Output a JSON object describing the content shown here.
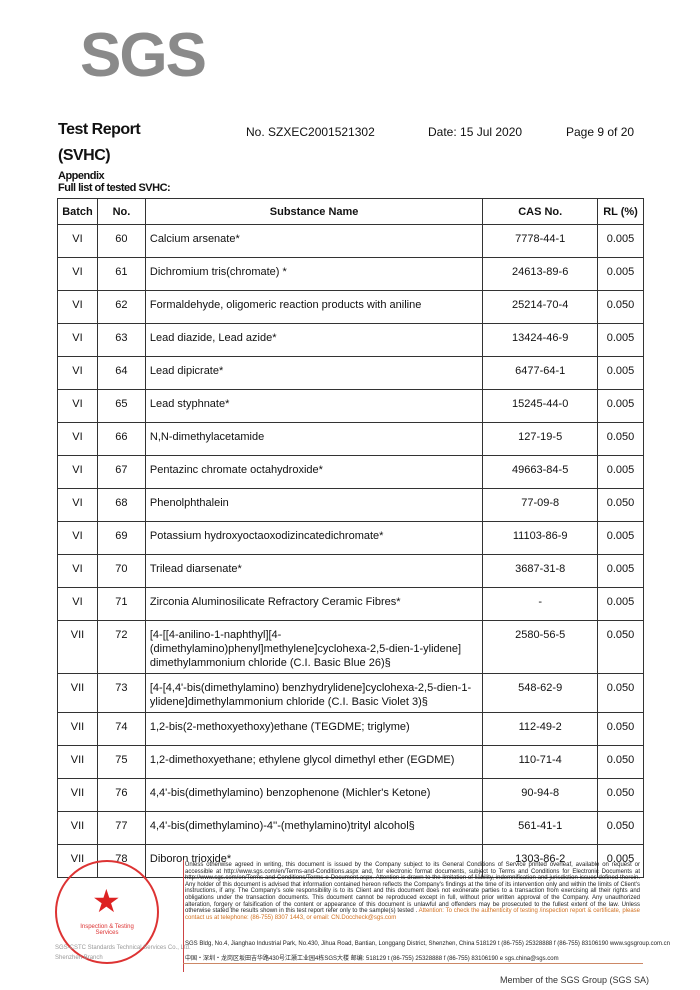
{
  "logo": "SGS",
  "header": {
    "title": "Test Report",
    "report_no": "No. SZXEC2001521302",
    "date": "Date: 15 Jul 2020",
    "page": "Page 9 of 20",
    "subtitle": "(SVHC)"
  },
  "appendix": "Appendix",
  "list_title": "Full list of tested SVHC:",
  "table": {
    "headers": [
      "Batch",
      "No.",
      "Substance Name",
      "CAS No.",
      "RL (%)"
    ],
    "rows": [
      [
        "VI",
        "60",
        "Calcium arsenate*",
        "7778-44-1",
        "0.005"
      ],
      [
        "VI",
        "61",
        "Dichromium tris(chromate) *",
        "24613-89-6",
        "0.005"
      ],
      [
        "VI",
        "62",
        "Formaldehyde, oligomeric reaction products with aniline",
        "25214-70-4",
        "0.050"
      ],
      [
        "VI",
        "63",
        "Lead diazide, Lead azide*",
        "13424-46-9",
        "0.005"
      ],
      [
        "VI",
        "64",
        "Lead dipicrate*",
        "6477-64-1",
        "0.005"
      ],
      [
        "VI",
        "65",
        "Lead styphnate*",
        "15245-44-0",
        "0.005"
      ],
      [
        "VI",
        "66",
        "N,N-dimethylacetamide",
        "127-19-5",
        "0.050"
      ],
      [
        "VI",
        "67",
        "Pentazinc chromate octahydroxide*",
        "49663-84-5",
        "0.005"
      ],
      [
        "VI",
        "68",
        "Phenolphthalein",
        "77-09-8",
        "0.050"
      ],
      [
        "VI",
        "69",
        "Potassium hydroxyoctaoxodizincatedichromate*",
        "11103-86-9",
        "0.005"
      ],
      [
        "VI",
        "70",
        "Trilead diarsenate*",
        "3687-31-8",
        "0.005"
      ],
      [
        "VI",
        "71",
        "Zirconia Aluminosilicate Refractory Ceramic Fibres*",
        "-",
        "0.005"
      ],
      [
        "VII",
        "72",
        "[4-[[4-anilino-1-naphthyl][4-(dimethylamino)phenyl]methylene]cyclohexa-2,5-dien-1-ylidene] dimethylammonium chloride (C.I. Basic Blue 26)§",
        "2580-56-5",
        "0.050"
      ],
      [
        "VII",
        "73",
        "[4-[4,4'-bis(dimethylamino) benzhydrylidene]cyclohexa-2,5-dien-1-ylidene]dimethylammonium chloride (C.I. Basic Violet 3)§",
        "548-62-9",
        "0.050"
      ],
      [
        "VII",
        "74",
        "1,2-bis(2-methoxyethoxy)ethane (TEGDME; triglyme)",
        "112-49-2",
        "0.050"
      ],
      [
        "VII",
        "75",
        "1,2-dimethoxyethane; ethylene glycol dimethyl ether (EGDME)",
        "110-71-4",
        "0.050"
      ],
      [
        "VII",
        "76",
        "4,4'-bis(dimethylamino) benzophenone (Michler's Ketone)",
        "90-94-8",
        "0.050"
      ],
      [
        "VII",
        "77",
        "4,4'-bis(dimethylamino)-4''-(methylamino)trityl alcohol§",
        "561-41-1",
        "0.050"
      ],
      [
        "VII",
        "78",
        "Diboron trioxide*",
        "1303-86-2",
        "0.005"
      ]
    ]
  },
  "footer": {
    "disclaimer": "Unless otherwise agreed in writing, this document is issued by the Company subject to its General Conditions of Service printed overleaf, available on request or accessible at http://www.sgs.com/en/Terms-and-Conditions.aspx and, for electronic format documents, subject to Terms and Conditions for Electronic Documents at http://www.sgs.com/en/Terms-and-Conditions/Terms-e-Document.aspx. Attention is drawn to the limitation of liability, indemnification and jurisdiction issues defined therein. Any holder of this document is advised that information contained hereon reflects the Company's findings at the time of its intervention only and within the limits of Client's instructions, if any. The Company's sole responsibility is to its Client and this document does not exonerate parties to a transaction from exercising all their rights and obligations under the transaction documents. This document cannot be reproduced except in full, without prior written approval of the Company. Any unauthorized alteration, forgery or falsification of the content or appearance of this document is unlawful and offenders may be prosecuted to the fullest extent of the law. Unless otherwise stated the results shown in this test report refer only to the sample(s) tested .",
    "attention": "Attention: To check the authenticity of testing /inspection report & certificate, please contact us at telephone: (86-755) 8307 1443, or email: CN.Doccheck@sgs.com",
    "address_en": "SGS Bldg, No.4, Jianghao Industrial Park, No.430, Jihua Road, Bantian, Longgang District, Shenzhen, China 518129   t (86-755) 25328888   f (86-755) 83106190   www.sgsgroup.com.cn",
    "address_cn": "中国・深圳・龙岗区坂田吉华路430号江灏工业园4栋SGS大楼   邮编: 518129   t (86-755) 25328888   f (86-755) 83106190   e sgs.china@sgs.com",
    "seal_text": "Inspection & Testing Services",
    "company_line1": "SGS-CSTC Standards Technical Services Co., Ltd.",
    "company_line2": "Shenzhen Branch",
    "member": "Member of the SGS Group (SGS SA)"
  }
}
